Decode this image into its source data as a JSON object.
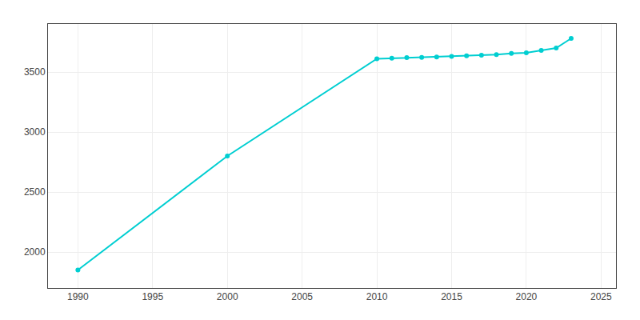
{
  "chart_data": {
    "type": "line",
    "x": [
      1990,
      2000,
      2010,
      2011,
      2012,
      2013,
      2014,
      2015,
      2016,
      2017,
      2018,
      2019,
      2020,
      2021,
      2022,
      2023
    ],
    "values": [
      1850,
      2800,
      3610,
      3615,
      3620,
      3622,
      3625,
      3630,
      3635,
      3640,
      3645,
      3655,
      3660,
      3680,
      3700,
      3780
    ],
    "color": "#00CED1",
    "marker": "circle",
    "xlim": [
      1988,
      2026
    ],
    "ylim": [
      1700,
      3900
    ],
    "xticks": [
      1990,
      1995,
      2000,
      2005,
      2010,
      2015,
      2020,
      2025
    ],
    "yticks": [
      2000,
      2500,
      3000,
      3500
    ],
    "grid": true
  }
}
